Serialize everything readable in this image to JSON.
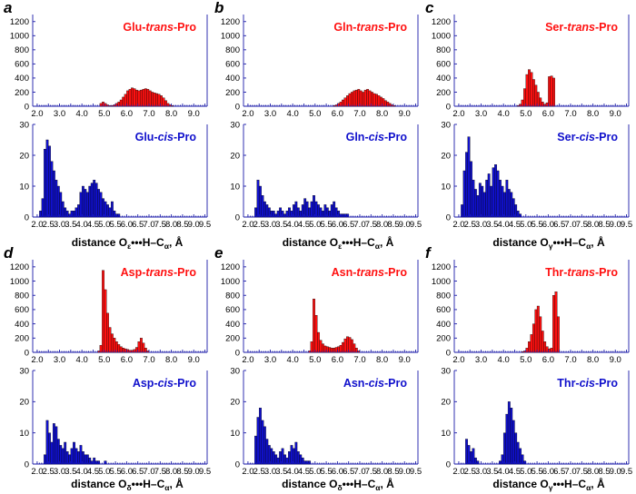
{
  "colors": {
    "trans": "#ff1010",
    "cis": "#1010cc",
    "axis": "#1a1aa8",
    "bar_edge": "#000000"
  },
  "chart_data": [
    {
      "panel": "a",
      "type": "bar",
      "isomer": "trans",
      "title": {
        "prefix": "Glu-",
        "isomer": "trans",
        "suffix": "-Pro"
      },
      "ylim": [
        0,
        1300
      ],
      "yticks": [
        "0",
        "200",
        "400",
        "600",
        "800",
        "1000",
        "1200"
      ],
      "xlim": [
        1.8,
        9.6
      ],
      "xticks": [
        "2.0",
        "3.0",
        "4.0",
        "5.0",
        "6.0",
        "7.0",
        "8.0",
        "9.0"
      ],
      "xlabel": null,
      "bin_start": 1.8,
      "bin_width": 0.1,
      "values": [
        0,
        0,
        0,
        0,
        0,
        0,
        0,
        0,
        0,
        0,
        0,
        0,
        0,
        0,
        0,
        0,
        0,
        0,
        0,
        0,
        0,
        0,
        0,
        0,
        0,
        0,
        0,
        0,
        0,
        0,
        40,
        60,
        40,
        20,
        10,
        10,
        20,
        40,
        60,
        90,
        130,
        170,
        220,
        240,
        260,
        250,
        230,
        220,
        230,
        240,
        250,
        240,
        220,
        200,
        190,
        180,
        170,
        150,
        120,
        80,
        40,
        20,
        10,
        0,
        0,
        0,
        0,
        0,
        0,
        0,
        0,
        0,
        0,
        0,
        0,
        0,
        0,
        0
      ]
    },
    {
      "panel": "a",
      "type": "bar",
      "isomer": "cis",
      "title": {
        "prefix": "Glu-",
        "isomer": "cis",
        "suffix": "-Pro"
      },
      "ylim": [
        0,
        30
      ],
      "yticks": [
        "0",
        "10",
        "20",
        "30"
      ],
      "xlim": [
        1.8,
        9.6
      ],
      "xticks": [
        "2.0",
        "2.5",
        "3.0",
        "3.5",
        "4.0",
        "4.5",
        "5.0",
        "5.5",
        "6.0",
        "6.5",
        "7.0",
        "7.5",
        "8.0",
        "8.5",
        "9.0",
        "9.5"
      ],
      "xlabel": {
        "prefix": "distance O",
        "sub": "ε",
        "suffix": "•••H–C",
        "sub2": "α",
        "tail": ", Å"
      },
      "bin_start": 1.8,
      "bin_width": 0.1,
      "values": [
        0,
        0,
        0,
        2,
        6,
        22,
        25,
        23,
        18,
        15,
        12,
        10,
        8,
        5,
        3,
        2,
        1,
        2,
        2,
        3,
        4,
        8,
        10,
        9,
        8,
        10,
        11,
        12,
        11,
        9,
        8,
        6,
        5,
        4,
        3,
        5,
        2,
        1,
        1,
        0,
        0,
        0,
        0,
        0,
        0,
        0,
        0,
        0,
        0,
        0,
        0,
        0,
        0,
        0,
        0,
        0,
        0,
        0,
        0,
        0,
        0,
        0,
        0,
        0,
        0,
        0,
        0,
        0,
        0,
        0,
        0,
        0,
        0,
        0,
        0,
        0,
        0,
        0
      ]
    },
    {
      "panel": "b",
      "type": "bar",
      "isomer": "trans",
      "title": {
        "prefix": "Gln-",
        "isomer": "trans",
        "suffix": "-Pro"
      },
      "ylim": [
        0,
        1300
      ],
      "yticks": [
        "0",
        "200",
        "400",
        "600",
        "800",
        "1000",
        "1200"
      ],
      "xlim": [
        1.8,
        9.6
      ],
      "xticks": [
        "2.0",
        "3.0",
        "4.0",
        "5.0",
        "6.0",
        "7.0",
        "8.0",
        "9.0"
      ],
      "xlabel": null,
      "bin_start": 1.8,
      "bin_width": 0.1,
      "values": [
        0,
        0,
        0,
        0,
        0,
        0,
        0,
        0,
        0,
        0,
        0,
        0,
        0,
        0,
        0,
        0,
        0,
        0,
        0,
        0,
        0,
        0,
        0,
        0,
        0,
        0,
        0,
        0,
        0,
        0,
        0,
        0,
        0,
        0,
        0,
        0,
        0,
        0,
        0,
        0,
        10,
        20,
        40,
        60,
        90,
        120,
        150,
        180,
        200,
        220,
        230,
        240,
        220,
        200,
        230,
        240,
        220,
        200,
        180,
        170,
        150,
        130,
        110,
        80,
        60,
        40,
        20,
        10,
        0,
        0,
        0,
        0,
        0,
        0,
        0,
        0,
        0,
        0
      ]
    },
    {
      "panel": "b",
      "type": "bar",
      "isomer": "cis",
      "title": {
        "prefix": "Gln-",
        "isomer": "cis",
        "suffix": "-Pro"
      },
      "ylim": [
        0,
        30
      ],
      "yticks": [
        "0",
        "10",
        "20",
        "30"
      ],
      "xlim": [
        1.8,
        9.6
      ],
      "xticks": [
        "2.0",
        "2.5",
        "3.0",
        "3.5",
        "4.0",
        "4.5",
        "5.0",
        "5.5",
        "6.0",
        "6.5",
        "7.0",
        "7.5",
        "8.0",
        "8.5",
        "9.0",
        "9.5"
      ],
      "xlabel": {
        "prefix": "distance O",
        "sub": "ε",
        "suffix": "•••H–C",
        "sub2": "α",
        "tail": ", Å"
      },
      "bin_start": 1.8,
      "bin_width": 0.1,
      "values": [
        0,
        0,
        0,
        0,
        0,
        3,
        12,
        10,
        7,
        5,
        4,
        3,
        2,
        2,
        1,
        2,
        3,
        2,
        1,
        2,
        3,
        2,
        4,
        5,
        3,
        2,
        4,
        6,
        5,
        3,
        5,
        7,
        5,
        4,
        3,
        2,
        4,
        3,
        2,
        4,
        5,
        3,
        2,
        1,
        1,
        1,
        1,
        0,
        0,
        0,
        0,
        0,
        0,
        0,
        0,
        0,
        0,
        0,
        0,
        0,
        0,
        0,
        0,
        0,
        0,
        0,
        0,
        0,
        0,
        0,
        0,
        0,
        0,
        0,
        0,
        0,
        0,
        0
      ]
    },
    {
      "panel": "c",
      "type": "bar",
      "isomer": "trans",
      "title": {
        "prefix": "Ser-",
        "isomer": "trans",
        "suffix": "-Pro"
      },
      "ylim": [
        0,
        1300
      ],
      "yticks": [
        "0",
        "200",
        "400",
        "600",
        "800",
        "1000",
        "1200"
      ],
      "xlim": [
        1.8,
        9.6
      ],
      "xticks": [
        "2.0",
        "3.0",
        "4.0",
        "5.0",
        "6.0",
        "7.0",
        "8.0",
        "9.0"
      ],
      "xlabel": null,
      "bin_start": 1.8,
      "bin_width": 0.1,
      "values": [
        0,
        0,
        0,
        0,
        0,
        0,
        0,
        0,
        0,
        0,
        0,
        0,
        0,
        0,
        0,
        0,
        0,
        0,
        0,
        0,
        0,
        0,
        0,
        0,
        0,
        0,
        0,
        0,
        10,
        30,
        90,
        250,
        450,
        520,
        480,
        380,
        300,
        200,
        120,
        60,
        30,
        50,
        420,
        430,
        400,
        0,
        0,
        0,
        0,
        0,
        0,
        0,
        0,
        0,
        0,
        0,
        0,
        0,
        0,
        0,
        0,
        0,
        0,
        0,
        0,
        0,
        0,
        0,
        0,
        0,
        0,
        0,
        0,
        0,
        0,
        0,
        0,
        0
      ]
    },
    {
      "panel": "c",
      "type": "bar",
      "isomer": "cis",
      "title": {
        "prefix": "Ser-",
        "isomer": "cis",
        "suffix": "-Pro"
      },
      "ylim": [
        0,
        30
      ],
      "yticks": [
        "0",
        "10",
        "20",
        "30"
      ],
      "xlim": [
        1.8,
        9.6
      ],
      "xticks": [
        "2.0",
        "2.5",
        "3.0",
        "3.5",
        "4.0",
        "4.5",
        "5.0",
        "5.5",
        "6.0",
        "6.5",
        "7.0",
        "7.5",
        "8.0",
        "8.5",
        "9.0",
        "9.5"
      ],
      "xlabel": {
        "prefix": "distance O",
        "sub": "γ",
        "suffix": "•••H–C",
        "sub2": "α",
        "tail": ", Å"
      },
      "bin_start": 1.8,
      "bin_width": 0.1,
      "values": [
        0,
        0,
        0,
        4,
        15,
        21,
        26,
        18,
        12,
        9,
        7,
        11,
        10,
        8,
        12,
        14,
        10,
        16,
        17,
        15,
        12,
        10,
        8,
        12,
        9,
        8,
        6,
        4,
        2,
        1,
        0,
        0,
        0,
        0,
        0,
        0,
        0,
        0,
        0,
        0,
        0,
        0,
        0,
        0,
        0,
        0,
        0,
        0,
        0,
        0,
        0,
        0,
        0,
        0,
        0,
        0,
        0,
        0,
        0,
        0,
        0,
        0,
        0,
        0,
        0,
        0,
        0,
        0,
        0,
        0,
        0,
        0,
        0,
        0,
        0,
        0,
        0,
        0
      ]
    },
    {
      "panel": "d",
      "type": "bar",
      "isomer": "trans",
      "title": {
        "prefix": "Asp-",
        "isomer": "trans",
        "suffix": "-Pro"
      },
      "ylim": [
        0,
        1300
      ],
      "yticks": [
        "0",
        "200",
        "400",
        "600",
        "800",
        "1000",
        "1200"
      ],
      "xlim": [
        1.8,
        9.6
      ],
      "xticks": [
        "2.0",
        "3.0",
        "4.0",
        "5.0",
        "6.0",
        "7.0",
        "8.0",
        "9.0"
      ],
      "xlabel": null,
      "bin_start": 1.8,
      "bin_width": 0.1,
      "values": [
        0,
        0,
        0,
        0,
        0,
        0,
        0,
        0,
        0,
        0,
        0,
        0,
        0,
        0,
        0,
        0,
        0,
        0,
        0,
        0,
        0,
        0,
        0,
        0,
        0,
        0,
        0,
        0,
        0,
        20,
        100,
        1150,
        880,
        550,
        350,
        260,
        200,
        150,
        110,
        80,
        60,
        50,
        40,
        30,
        30,
        40,
        70,
        150,
        200,
        130,
        60,
        20,
        0,
        0,
        0,
        0,
        0,
        0,
        0,
        0,
        0,
        0,
        0,
        0,
        0,
        0,
        0,
        0,
        0,
        0,
        0,
        0,
        0,
        0,
        0,
        0,
        0,
        0
      ]
    },
    {
      "panel": "d",
      "type": "bar",
      "isomer": "cis",
      "title": {
        "prefix": "Asp-",
        "isomer": "cis",
        "suffix": "-Pro"
      },
      "ylim": [
        0,
        30
      ],
      "yticks": [
        "0",
        "10",
        "20",
        "30"
      ],
      "xlim": [
        1.8,
        9.6
      ],
      "xticks": [
        "2.0",
        "2.5",
        "3.0",
        "3.5",
        "4.0",
        "4.5",
        "5.0",
        "5.5",
        "6.0",
        "6.5",
        "7.0",
        "7.5",
        "8.0",
        "8.5",
        "9.0",
        "9.5"
      ],
      "xlabel": {
        "prefix": "distance O",
        "sub": "δ",
        "suffix": "•••H–C",
        "sub2": "α",
        "tail": ", Å"
      },
      "bin_start": 1.8,
      "bin_width": 0.1,
      "values": [
        0,
        0,
        0,
        0,
        0,
        3,
        14,
        10,
        7,
        13,
        12,
        8,
        6,
        5,
        7,
        4,
        3,
        5,
        7,
        5,
        4,
        6,
        4,
        3,
        3,
        2,
        1,
        2,
        1,
        1,
        0,
        0,
        1,
        0,
        0,
        0,
        0,
        0,
        0,
        0,
        0,
        0,
        0,
        0,
        0,
        0,
        0,
        0,
        0,
        0,
        0,
        0,
        0,
        0,
        0,
        0,
        0,
        0,
        0,
        0,
        0,
        0,
        0,
        0,
        0,
        0,
        0,
        0,
        0,
        0,
        0,
        0,
        0,
        0,
        0,
        0,
        0,
        0
      ]
    },
    {
      "panel": "e",
      "type": "bar",
      "isomer": "trans",
      "title": {
        "prefix": "Asn-",
        "isomer": "trans",
        "suffix": "-Pro"
      },
      "ylim": [
        0,
        1300
      ],
      "yticks": [
        "0",
        "200",
        "400",
        "600",
        "800",
        "1000",
        "1200"
      ],
      "xlim": [
        1.8,
        9.6
      ],
      "xticks": [
        "2.0",
        "3.0",
        "4.0",
        "5.0",
        "6.0",
        "7.0",
        "8.0",
        "9.0"
      ],
      "xlabel": null,
      "bin_start": 1.8,
      "bin_width": 0.1,
      "values": [
        0,
        0,
        0,
        0,
        0,
        0,
        0,
        0,
        0,
        0,
        0,
        0,
        0,
        0,
        0,
        0,
        0,
        0,
        0,
        0,
        0,
        0,
        0,
        0,
        0,
        0,
        0,
        0,
        0,
        20,
        150,
        750,
        520,
        280,
        170,
        120,
        90,
        80,
        70,
        60,
        60,
        70,
        80,
        100,
        140,
        190,
        220,
        210,
        180,
        120,
        60,
        20,
        0,
        0,
        0,
        0,
        0,
        0,
        0,
        0,
        0,
        0,
        0,
        0,
        0,
        0,
        0,
        0,
        0,
        0,
        0,
        0,
        0,
        0,
        0,
        0,
        0,
        0
      ]
    },
    {
      "panel": "e",
      "type": "bar",
      "isomer": "cis",
      "title": {
        "prefix": "Asn-",
        "isomer": "cis",
        "suffix": "-Pro"
      },
      "ylim": [
        0,
        30
      ],
      "yticks": [
        "0",
        "10",
        "20",
        "30"
      ],
      "xlim": [
        1.8,
        9.6
      ],
      "xticks": [
        "2.0",
        "2.5",
        "3.0",
        "3.5",
        "4.0",
        "4.5",
        "5.0",
        "5.5",
        "6.0",
        "6.5",
        "7.0",
        "7.5",
        "8.0",
        "8.5",
        "9.0",
        "9.5"
      ],
      "xlabel": {
        "prefix": "distance O",
        "sub": "δ",
        "suffix": "•••H–C",
        "sub2": "α",
        "tail": ", Å"
      },
      "bin_start": 1.8,
      "bin_width": 0.1,
      "values": [
        0,
        0,
        0,
        0,
        0,
        9,
        15,
        18,
        14,
        12,
        8,
        6,
        5,
        4,
        3,
        2,
        4,
        5,
        3,
        2,
        4,
        6,
        5,
        7,
        4,
        3,
        2,
        1,
        1,
        1,
        0,
        0,
        0,
        0,
        0,
        0,
        0,
        0,
        0,
        0,
        0,
        0,
        0,
        0,
        0,
        0,
        0,
        0,
        0,
        0,
        0,
        0,
        0,
        0,
        0,
        0,
        0,
        0,
        0,
        0,
        0,
        0,
        0,
        0,
        0,
        0,
        0,
        0,
        0,
        0,
        0,
        0,
        0,
        0,
        0,
        0,
        0,
        0
      ]
    },
    {
      "panel": "f",
      "type": "bar",
      "isomer": "trans",
      "title": {
        "prefix": "Thr-",
        "isomer": "trans",
        "suffix": "-Pro"
      },
      "ylim": [
        0,
        1300
      ],
      "yticks": [
        "0",
        "200",
        "400",
        "600",
        "800",
        "1000",
        "1200"
      ],
      "xlim": [
        1.8,
        9.6
      ],
      "xticks": [
        "2.0",
        "3.0",
        "4.0",
        "5.0",
        "6.0",
        "7.0",
        "8.0",
        "9.0"
      ],
      "xlabel": null,
      "bin_start": 1.8,
      "bin_width": 0.1,
      "values": [
        0,
        0,
        0,
        0,
        0,
        0,
        0,
        0,
        0,
        0,
        0,
        0,
        0,
        0,
        0,
        0,
        0,
        0,
        0,
        0,
        0,
        0,
        0,
        0,
        0,
        0,
        0,
        0,
        0,
        0,
        10,
        20,
        60,
        150,
        250,
        400,
        600,
        650,
        500,
        300,
        150,
        80,
        50,
        60,
        800,
        850,
        500,
        0,
        0,
        0,
        0,
        0,
        0,
        0,
        0,
        0,
        0,
        0,
        0,
        0,
        0,
        0,
        0,
        0,
        0,
        0,
        0,
        0,
        0,
        0,
        0,
        0,
        0,
        0,
        0,
        0,
        0,
        0
      ]
    },
    {
      "panel": "f",
      "type": "bar",
      "isomer": "cis",
      "title": {
        "prefix": "Thr-",
        "isomer": "cis",
        "suffix": "-Pro"
      },
      "ylim": [
        0,
        30
      ],
      "yticks": [
        "0",
        "10",
        "20",
        "30"
      ],
      "xlim": [
        1.8,
        9.6
      ],
      "xticks": [
        "2.0",
        "2.5",
        "3.0",
        "3.5",
        "4.0",
        "4.5",
        "5.0",
        "5.5",
        "6.0",
        "6.5",
        "7.0",
        "7.5",
        "8.0",
        "8.5",
        "9.0",
        "9.5"
      ],
      "xlabel": {
        "prefix": "distance O",
        "sub": "γ",
        "suffix": "•••H–C",
        "sub2": "α",
        "tail": ", Å"
      },
      "bin_start": 1.8,
      "bin_width": 0.1,
      "values": [
        0,
        0,
        0,
        0,
        0,
        8,
        6,
        4,
        5,
        2,
        1,
        0,
        0,
        0,
        0,
        0,
        0,
        0,
        0,
        0,
        1,
        3,
        10,
        16,
        20,
        18,
        14,
        10,
        7,
        5,
        3,
        1,
        0,
        0,
        0,
        0,
        0,
        0,
        0,
        0,
        0,
        0,
        0,
        0,
        0,
        0,
        0,
        0,
        0,
        0,
        0,
        0,
        0,
        0,
        0,
        0,
        0,
        0,
        0,
        0,
        0,
        0,
        0,
        0,
        0,
        0,
        0,
        0,
        0,
        0,
        0,
        0,
        0,
        0,
        0,
        0,
        0,
        0
      ]
    }
  ]
}
